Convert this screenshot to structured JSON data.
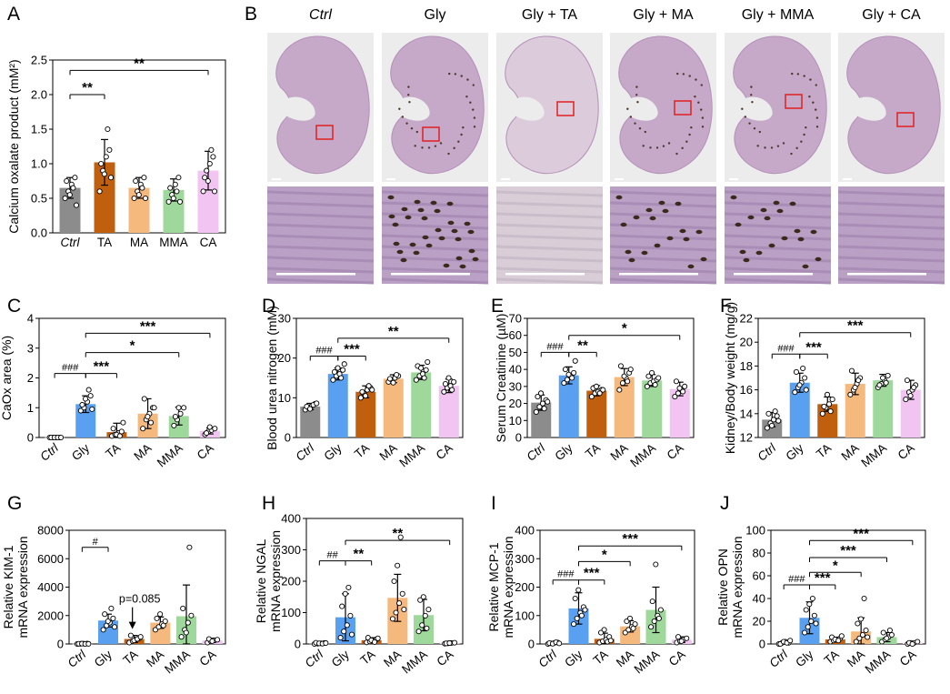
{
  "colors": {
    "Ctrl": "#8c8c8c",
    "Gly": "#5aa0f0",
    "TA": "#c0600e",
    "MA": "#f5b97d",
    "MMA": "#9ed89a",
    "CA": "#f2c4f2"
  },
  "histology": {
    "letter": "B",
    "titles": [
      "Ctrl",
      "Gly",
      "Gly + TA",
      "Gly + MA",
      "Gly + MMA",
      "Gly + CA"
    ]
  },
  "chart_data": [
    {
      "id": "A",
      "type": "bar",
      "letter": "A",
      "ylabel": "Calcium oxalate product (mM²)",
      "ylim": [
        0,
        2.5
      ],
      "yticks": [
        0,
        0.5,
        1.0,
        1.5,
        2.0,
        2.5
      ],
      "ytick_labels": [
        "0.0",
        "0.5",
        "1.0",
        "1.5",
        "2.0",
        "2.5"
      ],
      "categories": [
        "Ctrl",
        "TA",
        "MA",
        "MMA",
        "CA"
      ],
      "italic_categories": [
        "Ctrl"
      ],
      "rotate_labels": false,
      "values": [
        0.65,
        1.02,
        0.65,
        0.62,
        0.9
      ],
      "errors": [
        0.15,
        0.33,
        0.15,
        0.16,
        0.28
      ],
      "points": [
        [
          0.5,
          0.6,
          0.7,
          0.8,
          0.75,
          0.55,
          0.65,
          0.4
        ],
        [
          0.6,
          0.9,
          1.1,
          1.2,
          1.0,
          0.85,
          1.5,
          0.8
        ],
        [
          0.5,
          0.6,
          0.7,
          0.8,
          0.75,
          0.55,
          0.65,
          0.5
        ],
        [
          0.45,
          0.55,
          0.7,
          0.8,
          0.65,
          0.5,
          0.6,
          0.45
        ],
        [
          0.6,
          0.9,
          1.0,
          1.1,
          0.8,
          0.75,
          1.2,
          0.6
        ]
      ],
      "brackets": [
        {
          "from": 0,
          "to": 1,
          "level": 2.0,
          "label": "**"
        },
        {
          "from": 0,
          "to": 4,
          "level": 2.35,
          "label": "**"
        }
      ]
    },
    {
      "id": "C",
      "type": "bar",
      "letter": "C",
      "ylabel": "CaOx area (%)",
      "ylim": [
        0,
        4
      ],
      "yticks": [
        0,
        1,
        2,
        3,
        4
      ],
      "ytick_labels": [
        "0",
        "1",
        "2",
        "3",
        "4"
      ],
      "categories": [
        "Ctrl",
        "Gly",
        "TA",
        "MA",
        "MMA",
        "CA"
      ],
      "italic_categories": [
        "Ctrl"
      ],
      "rotate_labels": true,
      "values": [
        0.01,
        1.12,
        0.18,
        0.8,
        0.72,
        0.22
      ],
      "errors": [
        0.02,
        0.28,
        0.3,
        0.5,
        0.3,
        0.1
      ],
      "points": [
        [
          0,
          0,
          0,
          0,
          0,
          0,
          0,
          0
        ],
        [
          0.9,
          1.0,
          1.2,
          1.4,
          1.1,
          1.3,
          1.6,
          0.95
        ],
        [
          0.05,
          0.1,
          0.15,
          0.2,
          0.3,
          0.1,
          0.05,
          0.5
        ],
        [
          0.3,
          0.6,
          0.8,
          1.0,
          1.3,
          0.7,
          0.5,
          1.0
        ],
        [
          0.4,
          0.6,
          0.8,
          1.0,
          0.7,
          1.0
        ],
        [
          0.1,
          0.2,
          0.25,
          0.3,
          0.15,
          0.35
        ]
      ],
      "brackets": [
        {
          "from": 0,
          "to": 1,
          "level": 2.15,
          "label": "###",
          "kind": "hash"
        },
        {
          "from": 1,
          "to": 2,
          "level": 2.15,
          "label": "***"
        },
        {
          "from": 1,
          "to": 4,
          "level": 2.85,
          "label": "*"
        },
        {
          "from": 1,
          "to": 5,
          "level": 3.5,
          "label": "***"
        }
      ]
    },
    {
      "id": "D",
      "type": "bar",
      "letter": "D",
      "ylabel": "Blood urea nitrogen (mM)",
      "ylim": [
        0,
        30
      ],
      "yticks": [
        0,
        10,
        20,
        30
      ],
      "ytick_labels": [
        "0",
        "10",
        "20",
        "30"
      ],
      "categories": [
        "Ctrl",
        "Gly",
        "TA",
        "MA",
        "MMA",
        "CA"
      ],
      "italic_categories": [
        "Ctrl"
      ],
      "rotate_labels": true,
      "values": [
        7.8,
        16.0,
        11.5,
        14.8,
        16.4,
        13.0
      ],
      "errors": [
        0.8,
        1.5,
        1.5,
        1.0,
        1.8,
        1.7
      ],
      "points": [
        [
          7,
          7.5,
          8,
          8.5,
          7.8,
          7.2,
          8.2,
          8.6
        ],
        [
          14.5,
          15.5,
          16,
          17,
          16.5,
          17.5,
          15,
          18.5
        ],
        [
          10,
          11,
          12,
          12.5,
          11.5,
          10.5,
          13,
          12
        ],
        [
          14,
          14.5,
          15,
          15.5,
          14.8,
          13.8,
          15.8
        ],
        [
          14.5,
          15.5,
          16,
          17,
          18,
          17.5,
          15,
          19
        ],
        [
          11.5,
          12.5,
          13,
          14,
          13.5,
          15,
          12
        ]
      ],
      "brackets": [
        {
          "from": 0,
          "to": 1,
          "level": 20.5,
          "label": "###",
          "kind": "hash"
        },
        {
          "from": 1,
          "to": 2,
          "level": 20.5,
          "label": "***"
        },
        {
          "from": 1,
          "to": 5,
          "level": 25,
          "label": "**"
        }
      ]
    },
    {
      "id": "E",
      "type": "bar",
      "letter": "E",
      "ylabel": "Serum Creatinine (µM)",
      "ylim": [
        0,
        70
      ],
      "yticks": [
        0,
        10,
        20,
        30,
        40,
        50,
        60,
        70
      ],
      "ytick_labels": [
        "0",
        "10",
        "20",
        "30",
        "40",
        "50",
        "60",
        "70"
      ],
      "categories": [
        "Ctrl",
        "Gly",
        "TA",
        "MA",
        "MMA",
        "CA"
      ],
      "italic_categories": [
        "Ctrl"
      ],
      "rotate_labels": true,
      "values": [
        20.5,
        36.5,
        27.5,
        35.5,
        33.5,
        28.5
      ],
      "errors": [
        4.5,
        5.0,
        3.0,
        5.0,
        3.5,
        4.0
      ],
      "points": [
        [
          15,
          18,
          20,
          22,
          24,
          26,
          17,
          21
        ],
        [
          32,
          34,
          36,
          38,
          40,
          37,
          35,
          45
        ],
        [
          24,
          26,
          27,
          28,
          29,
          30,
          26,
          28
        ],
        [
          28,
          32,
          35,
          38,
          42,
          36,
          33,
          40
        ],
        [
          30,
          32,
          33,
          34,
          36,
          38,
          31,
          35
        ],
        [
          24,
          26,
          28,
          30,
          33,
          29,
          27
        ]
      ],
      "brackets": [
        {
          "from": 0,
          "to": 1,
          "level": 50,
          "label": "###",
          "kind": "hash"
        },
        {
          "from": 1,
          "to": 2,
          "level": 50,
          "label": "**"
        },
        {
          "from": 1,
          "to": 5,
          "level": 60,
          "label": "*"
        }
      ]
    },
    {
      "id": "F",
      "type": "bar",
      "letter": "F",
      "ylabel": "Kidney/Body weight (mg/g)",
      "ylim": [
        12,
        22
      ],
      "yticks": [
        12,
        14,
        16,
        18,
        20,
        22
      ],
      "ytick_labels": [
        "12",
        "14",
        "16",
        "18",
        "20",
        "22"
      ],
      "categories": [
        "Ctrl",
        "Gly",
        "TA",
        "MA",
        "MMA",
        "CA"
      ],
      "italic_categories": [
        "Ctrl"
      ],
      "rotate_labels": true,
      "values": [
        13.5,
        16.6,
        14.8,
        16.5,
        16.8,
        16.0
      ],
      "errors": [
        0.6,
        0.8,
        0.6,
        0.9,
        0.5,
        0.8
      ],
      "points": [
        [
          12.8,
          13.2,
          13.5,
          13.8,
          14.0,
          13.0,
          14.2,
          13.4
        ],
        [
          15.8,
          16.2,
          16.6,
          17.0,
          17.5,
          16.4,
          17.8,
          16.0
        ],
        [
          14.0,
          14.5,
          14.8,
          15.2,
          14.6,
          15.6,
          14.2
        ],
        [
          15.6,
          16.0,
          16.5,
          17.0,
          17.6,
          16.2,
          16.8
        ],
        [
          16.2,
          16.5,
          16.8,
          17.2,
          16.4,
          17.0,
          16.6
        ],
        [
          15.2,
          15.8,
          16.0,
          16.4,
          16.8,
          15.5,
          16.2
        ]
      ],
      "brackets": [
        {
          "from": 0,
          "to": 1,
          "level": 19.0,
          "label": "###",
          "kind": "hash"
        },
        {
          "from": 1,
          "to": 2,
          "level": 19.0,
          "label": "***"
        },
        {
          "from": 1,
          "to": 5,
          "level": 20.8,
          "label": "***"
        }
      ]
    },
    {
      "id": "G",
      "type": "bar",
      "letter": "G",
      "ylabel": "Relative KIM-1 mRNA expression",
      "ylim": [
        0,
        8000
      ],
      "yticks": [
        0,
        2000,
        4000,
        6000,
        8000
      ],
      "ytick_labels": [
        "0",
        "2000",
        "4000",
        "6000",
        "8000"
      ],
      "categories": [
        "Ctrl",
        "Gly",
        "TA",
        "MA",
        "MMA",
        "CA"
      ],
      "italic_categories": [
        "Ctrl"
      ],
      "rotate_labels": true,
      "values": [
        20,
        1650,
        350,
        1500,
        1950,
        250
      ],
      "errors": [
        20,
        450,
        250,
        400,
        2200,
        150
      ],
      "points": [
        [
          0,
          10,
          20,
          30,
          15,
          25,
          5,
          10
        ],
        [
          1000,
          1300,
          1500,
          1800,
          2100,
          1600,
          2500,
          1200
        ],
        [
          100,
          200,
          300,
          400,
          600,
          250,
          350,
          500
        ],
        [
          1000,
          1200,
          1400,
          1600,
          1800,
          2100,
          1300
        ],
        [
          500,
          1000,
          1500,
          2000,
          2500,
          800,
          6800
        ],
        [
          100,
          200,
          250,
          300,
          350,
          200
        ]
      ],
      "brackets": [
        {
          "from": 0,
          "to": 1,
          "level": 6800,
          "label": "#",
          "kind": "hash"
        }
      ],
      "annotation": {
        "text": "p=0.085",
        "arrow_to": 2
      }
    },
    {
      "id": "H",
      "type": "bar",
      "letter": "H",
      "ylabel": "Relative NGAL mRNA expression",
      "ylim": [
        0,
        400
      ],
      "yticks": [
        0,
        100,
        200,
        300,
        400
      ],
      "ytick_labels": [
        "0",
        "100",
        "200",
        "300",
        "400"
      ],
      "categories": [
        "Ctrl",
        "Gly",
        "TA",
        "MA",
        "MMA",
        "CA"
      ],
      "italic_categories": [
        "Ctrl"
      ],
      "rotate_labels": true,
      "values": [
        2,
        85,
        12,
        147,
        92,
        3
      ],
      "errors": [
        3,
        75,
        8,
        75,
        50,
        2
      ],
      "points": [
        [
          0,
          1,
          2,
          3,
          4,
          2,
          1,
          3
        ],
        [
          20,
          40,
          60,
          90,
          120,
          160,
          180,
          30
        ],
        [
          5,
          8,
          10,
          15,
          20,
          12,
          6,
          18
        ],
        [
          80,
          100,
          130,
          160,
          200,
          250,
          340,
          110
        ],
        [
          40,
          60,
          90,
          110,
          140,
          150,
          50
        ],
        [
          1,
          2,
          3,
          4,
          2,
          3
        ]
      ],
      "brackets": [
        {
          "from": 0,
          "to": 1,
          "level": 265,
          "label": "##",
          "kind": "hash"
        },
        {
          "from": 1,
          "to": 2,
          "level": 265,
          "label": "**"
        },
        {
          "from": 1,
          "to": 5,
          "level": 330,
          "label": "**"
        }
      ]
    },
    {
      "id": "I",
      "type": "bar",
      "letter": "I",
      "ylabel": "Relative MCP-1 mRNA expression",
      "ylim": [
        0,
        400
      ],
      "yticks": [
        0,
        100,
        200,
        300,
        400
      ],
      "ytick_labels": [
        "0",
        "100",
        "200",
        "300",
        "400"
      ],
      "categories": [
        "Ctrl",
        "Gly",
        "TA",
        "MA",
        "MMA",
        "CA"
      ],
      "italic_categories": [
        "Ctrl"
      ],
      "rotate_labels": true,
      "values": [
        3,
        125,
        18,
        62,
        120,
        15
      ],
      "errors": [
        3,
        55,
        20,
        20,
        80,
        10
      ],
      "points": [
        [
          0,
          2,
          4,
          5,
          3,
          1,
          6,
          2
        ],
        [
          70,
          90,
          110,
          130,
          160,
          190,
          100,
          120
        ],
        [
          5,
          10,
          15,
          25,
          40,
          50,
          8,
          12
        ],
        [
          40,
          50,
          60,
          70,
          80,
          90,
          55
        ],
        [
          60,
          80,
          100,
          120,
          150,
          280,
          90
        ],
        [
          5,
          10,
          15,
          20,
          25,
          10
        ]
      ],
      "brackets": [
        {
          "from": 0,
          "to": 1,
          "level": 225,
          "label": "###",
          "kind": "hash"
        },
        {
          "from": 1,
          "to": 2,
          "level": 225,
          "label": "***"
        },
        {
          "from": 1,
          "to": 3,
          "level": 290,
          "label": "*"
        },
        {
          "from": 1,
          "to": 5,
          "level": 345,
          "label": "***"
        }
      ]
    },
    {
      "id": "J",
      "type": "bar",
      "letter": "J",
      "ylabel": "Relative OPN mRNA expression",
      "ylim": [
        0,
        100
      ],
      "yticks": [
        0,
        20,
        40,
        60,
        80,
        100
      ],
      "ytick_labels": [
        "0",
        "20",
        "40",
        "60",
        "80",
        "100"
      ],
      "categories": [
        "Ctrl",
        "Gly",
        "TA",
        "MA",
        "MMA",
        "CA"
      ],
      "italic_categories": [
        "Ctrl"
      ],
      "rotate_labels": true,
      "values": [
        1,
        23,
        4,
        11,
        6,
        1
      ],
      "errors": [
        1,
        14,
        2,
        12,
        4,
        1
      ],
      "points": [
        [
          0,
          1,
          2,
          1,
          0,
          2,
          1,
          3
        ],
        [
          10,
          15,
          20,
          25,
          30,
          35,
          40,
          18
        ],
        [
          2,
          3,
          4,
          5,
          6,
          4,
          3,
          7
        ],
        [
          2,
          5,
          8,
          12,
          18,
          22,
          40,
          6
        ],
        [
          2,
          4,
          6,
          8,
          10,
          5,
          12
        ],
        [
          0,
          1,
          1,
          2,
          1,
          0
        ]
      ],
      "brackets": [
        {
          "from": 0,
          "to": 1,
          "level": 52,
          "label": "###",
          "kind": "hash"
        },
        {
          "from": 1,
          "to": 2,
          "level": 52,
          "label": "***"
        },
        {
          "from": 1,
          "to": 3,
          "level": 63,
          "label": "*"
        },
        {
          "from": 1,
          "to": 4,
          "level": 76,
          "label": "***"
        },
        {
          "from": 1,
          "to": 5,
          "level": 91,
          "label": "***"
        }
      ]
    }
  ]
}
